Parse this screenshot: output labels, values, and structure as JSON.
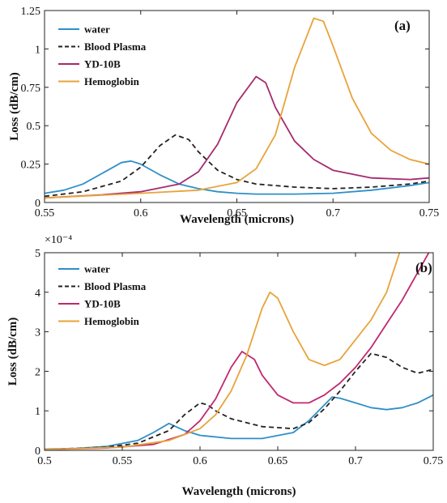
{
  "chart_data": [
    {
      "type": "line",
      "panel_label": "(a)",
      "xlabel": "Wavelength (microns)",
      "ylabel": "Loss (dB/cm)",
      "xlim": [
        0.55,
        0.75
      ],
      "ylim": [
        0,
        1.25
      ],
      "xticks": [
        0.55,
        0.6,
        0.65,
        0.7,
        0.75
      ],
      "xtick_labels": [
        "0.55",
        "0.6",
        "0.65",
        "0.7",
        "0.75"
      ],
      "yticks": [
        0,
        0.25,
        0.5,
        0.75,
        1,
        1.25
      ],
      "ytick_labels": [
        "0",
        "0.25",
        "0.5",
        "0.75",
        "1",
        "1.25"
      ],
      "exponent_label": "",
      "grid": false,
      "legend_position": "top-left",
      "series": [
        {
          "name": "water",
          "color": "#2f8fc8",
          "dash": "solid",
          "points": [
            [
              0.55,
              0.06
            ],
            [
              0.56,
              0.08
            ],
            [
              0.57,
              0.12
            ],
            [
              0.58,
              0.19
            ],
            [
              0.59,
              0.26
            ],
            [
              0.595,
              0.27
            ],
            [
              0.6,
              0.25
            ],
            [
              0.61,
              0.18
            ],
            [
              0.62,
              0.12
            ],
            [
              0.63,
              0.09
            ],
            [
              0.64,
              0.07
            ],
            [
              0.65,
              0.06
            ],
            [
              0.66,
              0.055
            ],
            [
              0.68,
              0.055
            ],
            [
              0.7,
              0.06
            ],
            [
              0.72,
              0.08
            ],
            [
              0.74,
              0.11
            ],
            [
              0.75,
              0.13
            ]
          ]
        },
        {
          "name": "Blood Plasma",
          "color": "#222222",
          "dash": "dashed",
          "points": [
            [
              0.55,
              0.04
            ],
            [
              0.57,
              0.07
            ],
            [
              0.59,
              0.14
            ],
            [
              0.6,
              0.23
            ],
            [
              0.61,
              0.37
            ],
            [
              0.618,
              0.44
            ],
            [
              0.625,
              0.41
            ],
            [
              0.63,
              0.33
            ],
            [
              0.64,
              0.21
            ],
            [
              0.65,
              0.15
            ],
            [
              0.66,
              0.12
            ],
            [
              0.68,
              0.1
            ],
            [
              0.7,
              0.09
            ],
            [
              0.72,
              0.1
            ],
            [
              0.74,
              0.12
            ],
            [
              0.75,
              0.14
            ]
          ]
        },
        {
          "name": "YD-10B",
          "color": "#a52a6e",
          "dash": "solid",
          "points": [
            [
              0.55,
              0.03
            ],
            [
              0.58,
              0.05
            ],
            [
              0.6,
              0.07
            ],
            [
              0.62,
              0.12
            ],
            [
              0.63,
              0.2
            ],
            [
              0.64,
              0.38
            ],
            [
              0.65,
              0.65
            ],
            [
              0.66,
              0.82
            ],
            [
              0.665,
              0.78
            ],
            [
              0.67,
              0.62
            ],
            [
              0.68,
              0.4
            ],
            [
              0.69,
              0.28
            ],
            [
              0.7,
              0.21
            ],
            [
              0.72,
              0.16
            ],
            [
              0.74,
              0.15
            ],
            [
              0.75,
              0.16
            ]
          ]
        },
        {
          "name": "Hemoglobin",
          "color": "#e8a33a",
          "dash": "solid",
          "points": [
            [
              0.55,
              0.03
            ],
            [
              0.6,
              0.06
            ],
            [
              0.63,
              0.08
            ],
            [
              0.65,
              0.13
            ],
            [
              0.66,
              0.22
            ],
            [
              0.67,
              0.44
            ],
            [
              0.68,
              0.88
            ],
            [
              0.69,
              1.2
            ],
            [
              0.695,
              1.18
            ],
            [
              0.7,
              1.02
            ],
            [
              0.71,
              0.68
            ],
            [
              0.72,
              0.45
            ],
            [
              0.73,
              0.34
            ],
            [
              0.74,
              0.28
            ],
            [
              0.75,
              0.25
            ]
          ]
        }
      ]
    },
    {
      "type": "line",
      "panel_label": "(b)",
      "xlabel": "Wavelength (microns)",
      "ylabel": "Loss (dB/cm)",
      "xlim": [
        0.5,
        0.75
      ],
      "ylim": [
        0,
        5
      ],
      "xticks": [
        0.5,
        0.55,
        0.6,
        0.65,
        0.7,
        0.75
      ],
      "xtick_labels": [
        "0.5",
        "0.55",
        "0.6",
        "0.65",
        "0.7",
        "0.75"
      ],
      "yticks": [
        0,
        1,
        2,
        3,
        4,
        5
      ],
      "ytick_labels": [
        "0",
        "1",
        "2",
        "3",
        "4",
        "5"
      ],
      "exponent_label": "×10⁻⁴",
      "grid": false,
      "legend_position": "top-left",
      "series": [
        {
          "name": "water",
          "color": "#2f8fc8",
          "dash": "solid",
          "points": [
            [
              0.5,
              0.03
            ],
            [
              0.52,
              0.05
            ],
            [
              0.54,
              0.1
            ],
            [
              0.56,
              0.25
            ],
            [
              0.57,
              0.45
            ],
            [
              0.58,
              0.68
            ],
            [
              0.59,
              0.5
            ],
            [
              0.6,
              0.38
            ],
            [
              0.62,
              0.3
            ],
            [
              0.64,
              0.3
            ],
            [
              0.66,
              0.45
            ],
            [
              0.67,
              0.75
            ],
            [
              0.68,
              1.15
            ],
            [
              0.685,
              1.35
            ],
            [
              0.69,
              1.32
            ],
            [
              0.7,
              1.2
            ],
            [
              0.71,
              1.08
            ],
            [
              0.72,
              1.03
            ],
            [
              0.73,
              1.08
            ],
            [
              0.74,
              1.2
            ],
            [
              0.75,
              1.4
            ]
          ]
        },
        {
          "name": "Blood Plasma",
          "color": "#222222",
          "dash": "dashed",
          "points": [
            [
              0.5,
              0.02
            ],
            [
              0.54,
              0.08
            ],
            [
              0.56,
              0.18
            ],
            [
              0.58,
              0.5
            ],
            [
              0.59,
              0.9
            ],
            [
              0.6,
              1.2
            ],
            [
              0.605,
              1.15
            ],
            [
              0.61,
              1.0
            ],
            [
              0.62,
              0.8
            ],
            [
              0.64,
              0.6
            ],
            [
              0.66,
              0.55
            ],
            [
              0.67,
              0.7
            ],
            [
              0.68,
              1.05
            ],
            [
              0.69,
              1.5
            ],
            [
              0.7,
              2.0
            ],
            [
              0.71,
              2.45
            ],
            [
              0.72,
              2.35
            ],
            [
              0.73,
              2.1
            ],
            [
              0.74,
              1.95
            ],
            [
              0.75,
              2.05
            ]
          ]
        },
        {
          "name": "YD-10B",
          "color": "#c0286e",
          "dash": "solid",
          "points": [
            [
              0.5,
              0.02
            ],
            [
              0.54,
              0.06
            ],
            [
              0.57,
              0.15
            ],
            [
              0.59,
              0.4
            ],
            [
              0.6,
              0.75
            ],
            [
              0.61,
              1.3
            ],
            [
              0.62,
              2.1
            ],
            [
              0.627,
              2.5
            ],
            [
              0.635,
              2.3
            ],
            [
              0.64,
              1.9
            ],
            [
              0.65,
              1.4
            ],
            [
              0.66,
              1.2
            ],
            [
              0.67,
              1.2
            ],
            [
              0.68,
              1.4
            ],
            [
              0.69,
              1.7
            ],
            [
              0.7,
              2.1
            ],
            [
              0.71,
              2.6
            ],
            [
              0.72,
              3.2
            ],
            [
              0.73,
              3.8
            ],
            [
              0.74,
              4.5
            ],
            [
              0.75,
              5.2
            ]
          ]
        },
        {
          "name": "Hemoglobin",
          "color": "#e8a33a",
          "dash": "solid",
          "points": [
            [
              0.5,
              0.02
            ],
            [
              0.55,
              0.08
            ],
            [
              0.58,
              0.25
            ],
            [
              0.6,
              0.55
            ],
            [
              0.61,
              0.9
            ],
            [
              0.62,
              1.5
            ],
            [
              0.63,
              2.4
            ],
            [
              0.64,
              3.6
            ],
            [
              0.645,
              4.0
            ],
            [
              0.65,
              3.85
            ],
            [
              0.66,
              3.0
            ],
            [
              0.67,
              2.3
            ],
            [
              0.68,
              2.15
            ],
            [
              0.69,
              2.3
            ],
            [
              0.7,
              2.8
            ],
            [
              0.71,
              3.3
            ],
            [
              0.72,
              4.0
            ],
            [
              0.73,
              5.2
            ]
          ]
        }
      ]
    }
  ]
}
